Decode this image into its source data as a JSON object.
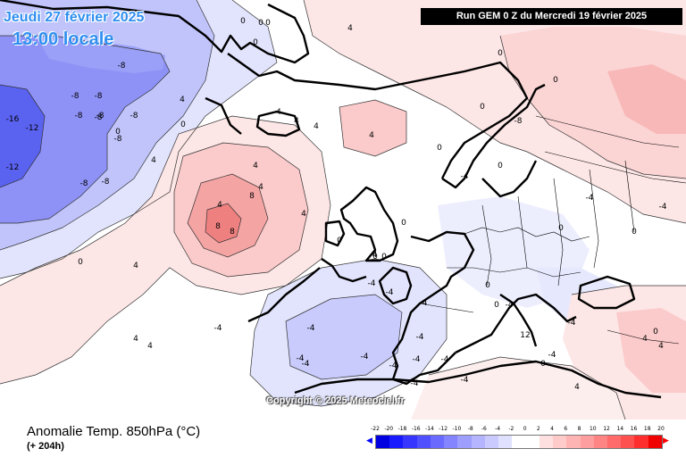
{
  "header": {
    "valid_time": "Jeudi 27 février 2025",
    "local_time": "13:00 locale",
    "run_info": "Run GEM 0 Z du Mercredi 19 février 2025"
  },
  "watermark": "Copyright © 2025 Meteociel.fr",
  "footer": {
    "title": "Anomalie Temp. 850hPa (°C)",
    "lead": "(+ 204h)"
  },
  "legend": {
    "ticks": [
      "-22",
      "-20",
      "-18",
      "-16",
      "-14",
      "-12",
      "-10",
      "-8",
      "-6",
      "-4",
      "-2",
      "0",
      "2",
      "4",
      "6",
      "8",
      "10",
      "12",
      "14",
      "16",
      "18",
      "20"
    ],
    "colors": [
      "#0000e0",
      "#1a1aff",
      "#3636ff",
      "#5050ff",
      "#6a6aff",
      "#8484ff",
      "#9e9eff",
      "#b4b4ff",
      "#cacaff",
      "#e0e0ff",
      "#ffffff",
      "#ffffff",
      "#ffe0e0",
      "#ffcaca",
      "#ffb4b4",
      "#ff9e9e",
      "#ff8484",
      "#ff6a6a",
      "#ff5050",
      "#ff2e2e",
      "#f00000"
    ],
    "left_arrow": "◀",
    "right_arrow": "▶"
  },
  "map": {
    "contour_labels": [
      "0",
      "0",
      "0",
      "0",
      "0",
      "0",
      "0",
      "0",
      "0",
      "0",
      "0",
      "0",
      "-4",
      "-4",
      "-4",
      "-4",
      "-4",
      "-4",
      "-4",
      "-4",
      "-4",
      "-4",
      "-4",
      "-4",
      "-4",
      "-4",
      "-4",
      "-8",
      "-8",
      "-8",
      "-8",
      "-8",
      "-8",
      "-8",
      "-8",
      "-8",
      "-12",
      "-12",
      "-16",
      "4",
      "4",
      "4",
      "4",
      "4",
      "4",
      "4",
      "4",
      "4",
      "4",
      "4",
      "4",
      "4",
      "4",
      "8",
      "8",
      "8",
      "12",
      "-4",
      "-4",
      "0",
      "0",
      "0",
      "0",
      "4",
      "4",
      "4",
      "-4",
      "-4",
      "0",
      "0",
      "0",
      "-8",
      "-8",
      "-4",
      "-4",
      "0",
      "0",
      "0",
      "4"
    ],
    "colors": {
      "cold_strong": "#5a62f0",
      "cold_mid": "#8e92f6",
      "cold_light": "#c0c4fb",
      "cold_faint": "#e2e4fd",
      "warm_faint": "#fde6e6",
      "warm_light": "#fbcaca",
      "warm_mid": "#f5a4a4",
      "warm_strong": "#ee8080"
    }
  }
}
